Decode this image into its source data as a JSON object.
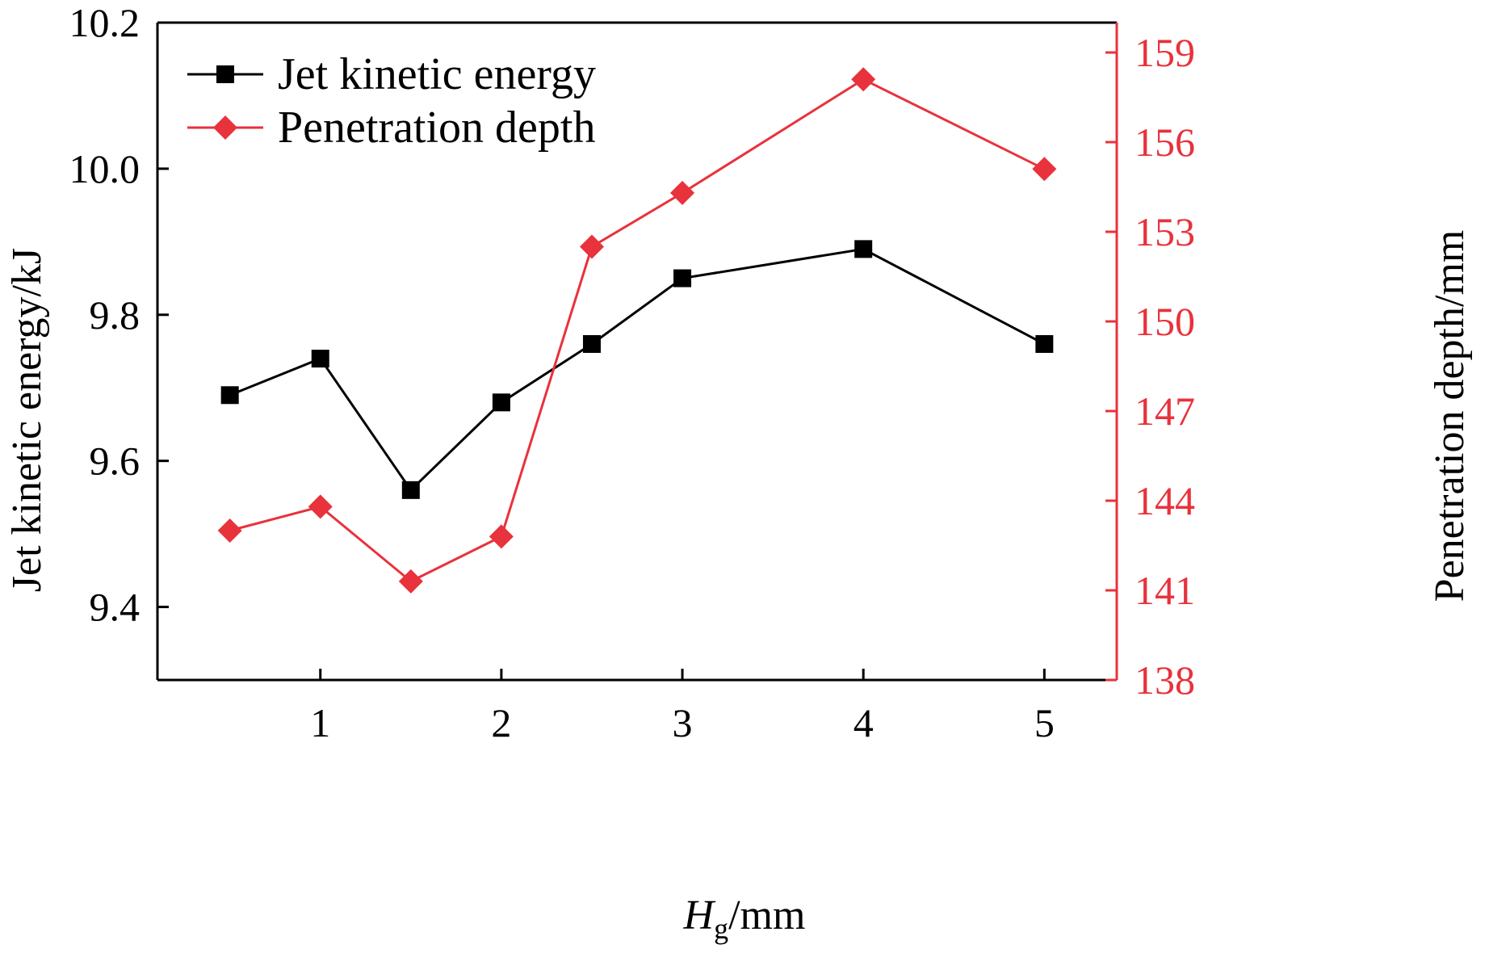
{
  "chart_data": {
    "type": "line",
    "x_label_main": "H",
    "x_label_sub": "g",
    "x_label_unit": "/mm",
    "y_left_label": "Jet kinetic energy/kJ",
    "y_right_label": "Penetration depth/mm",
    "x_range": [
      0.1,
      5.4
    ],
    "x_ticks": [
      1,
      2,
      3,
      4,
      5
    ],
    "y_left_range": [
      9.3,
      10.2
    ],
    "y_left_ticks": [
      9.4,
      9.6,
      9.8,
      10.0,
      10.2
    ],
    "y_left_tick_labels": [
      "9.4",
      "9.6",
      "9.8",
      "10.0",
      "10.2"
    ],
    "y_right_range": [
      138,
      160
    ],
    "y_right_ticks": [
      138,
      141,
      144,
      147,
      150,
      153,
      156,
      159
    ],
    "grid": false,
    "legend_position": "top-left",
    "series": [
      {
        "name": "Jet kinetic energy",
        "axis": "left",
        "color": "#000000",
        "marker": "square",
        "x": [
          0.5,
          1,
          1.5,
          2,
          2.5,
          3,
          4,
          5
        ],
        "values": [
          9.69,
          9.74,
          9.56,
          9.68,
          9.76,
          9.85,
          9.89,
          9.76
        ]
      },
      {
        "name": "Penetration depth",
        "axis": "right",
        "color": "#e8323c",
        "marker": "diamond",
        "x": [
          0.5,
          1,
          1.5,
          2,
          2.5,
          3,
          4,
          5
        ],
        "values": [
          143.0,
          143.8,
          141.3,
          142.8,
          152.5,
          154.3,
          158.1,
          155.1
        ]
      }
    ],
    "colors": {
      "left_axis": "#000000",
      "right_axis": "#e8323c"
    }
  }
}
